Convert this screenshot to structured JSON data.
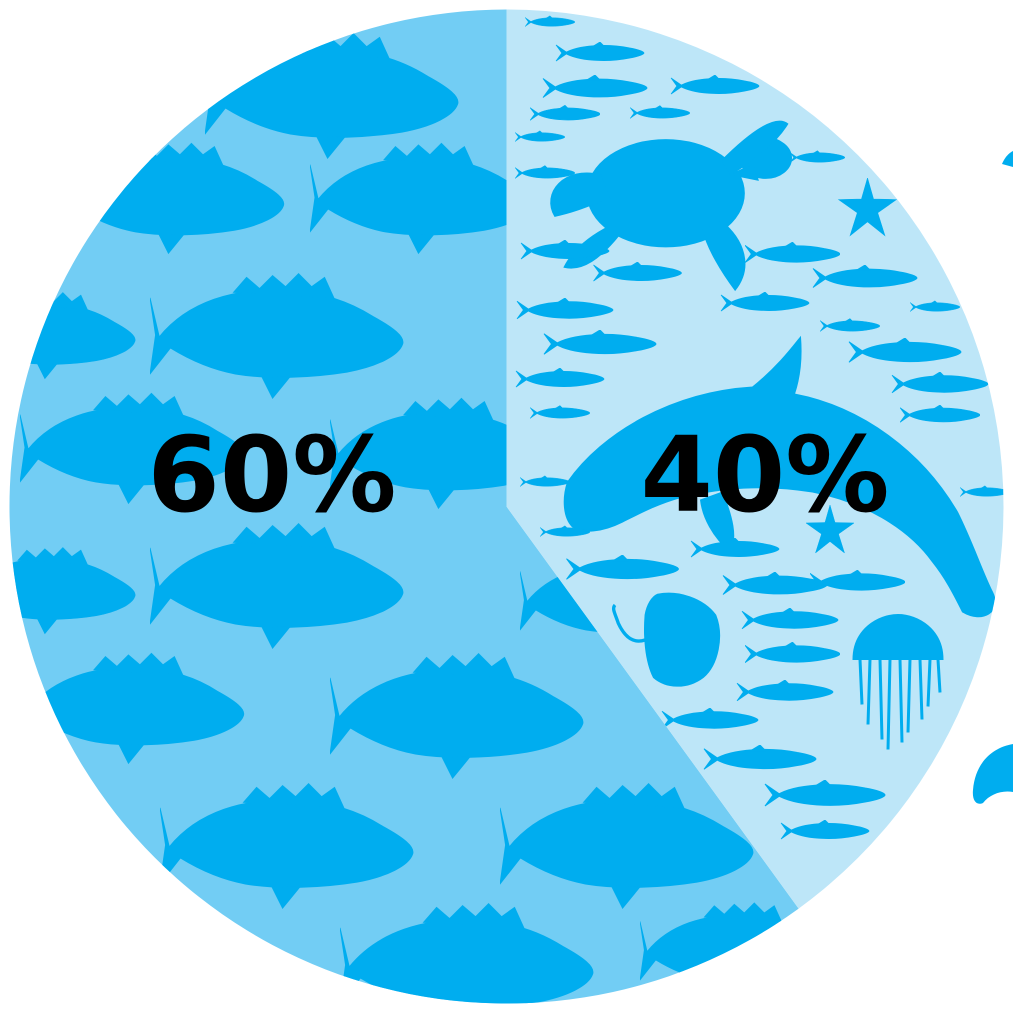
{
  "chart_data": {
    "type": "pie",
    "slices": [
      {
        "label": "60%",
        "value": 60,
        "color": "#72cdf4",
        "pattern": "grouper-fish-silhouettes"
      },
      {
        "label": "40%",
        "value": 40,
        "color": "#bde6f8",
        "pattern": "mixed-marine-life-silhouettes"
      }
    ],
    "silhouette_color": "#00adef",
    "start_angle": "top",
    "direction": "clockwise",
    "legend": "none"
  }
}
